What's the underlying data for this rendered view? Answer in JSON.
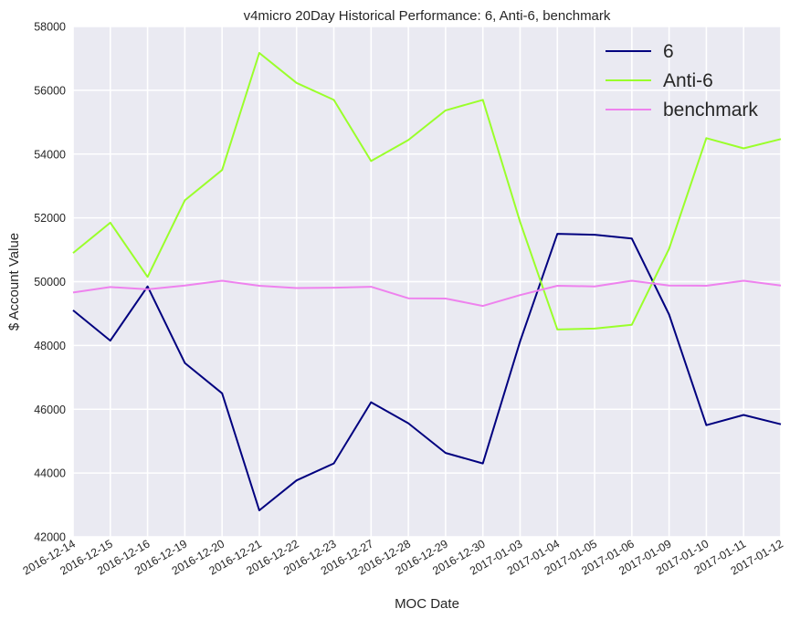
{
  "chart_data": {
    "type": "line",
    "title": "v4micro 20Day Historical Performance: 6, Anti-6, benchmark",
    "xlabel": "MOC Date",
    "ylabel": "$ Account Value",
    "ylim": [
      42000,
      58000
    ],
    "yticks": [
      42000,
      44000,
      46000,
      48000,
      50000,
      52000,
      54000,
      56000,
      58000
    ],
    "grid": true,
    "legend_position": "top-right",
    "categories": [
      "2016-12-14",
      "2016-12-15",
      "2016-12-16",
      "2016-12-19",
      "2016-12-20",
      "2016-12-21",
      "2016-12-22",
      "2016-12-23",
      "2016-12-27",
      "2016-12-28",
      "2016-12-29",
      "2016-12-30",
      "2017-01-03",
      "2017-01-04",
      "2017-01-05",
      "2017-01-06",
      "2017-01-09",
      "2017-01-10",
      "2017-01-11",
      "2017-01-12"
    ],
    "series": [
      {
        "name": "6",
        "color": "#00007f",
        "values": [
          49100,
          48150,
          49850,
          47450,
          46500,
          42830,
          43770,
          44300,
          46220,
          45560,
          44630,
          44300,
          48130,
          51500,
          51470,
          51350,
          48970,
          45500,
          45820,
          45530
        ]
      },
      {
        "name": "Anti-6",
        "color": "#9aff2b",
        "values": [
          50900,
          51850,
          50150,
          52550,
          53500,
          57170,
          56230,
          55700,
          53780,
          54440,
          55370,
          55700,
          51870,
          48500,
          48530,
          48650,
          51030,
          54500,
          54180,
          54470
        ]
      },
      {
        "name": "benchmark",
        "color": "#ee82ee",
        "values": [
          49660,
          49830,
          49760,
          49880,
          50030,
          49870,
          49800,
          49810,
          49840,
          49480,
          49470,
          49240,
          49580,
          49870,
          49850,
          50030,
          49880,
          49870,
          50030,
          49880
        ]
      }
    ]
  }
}
